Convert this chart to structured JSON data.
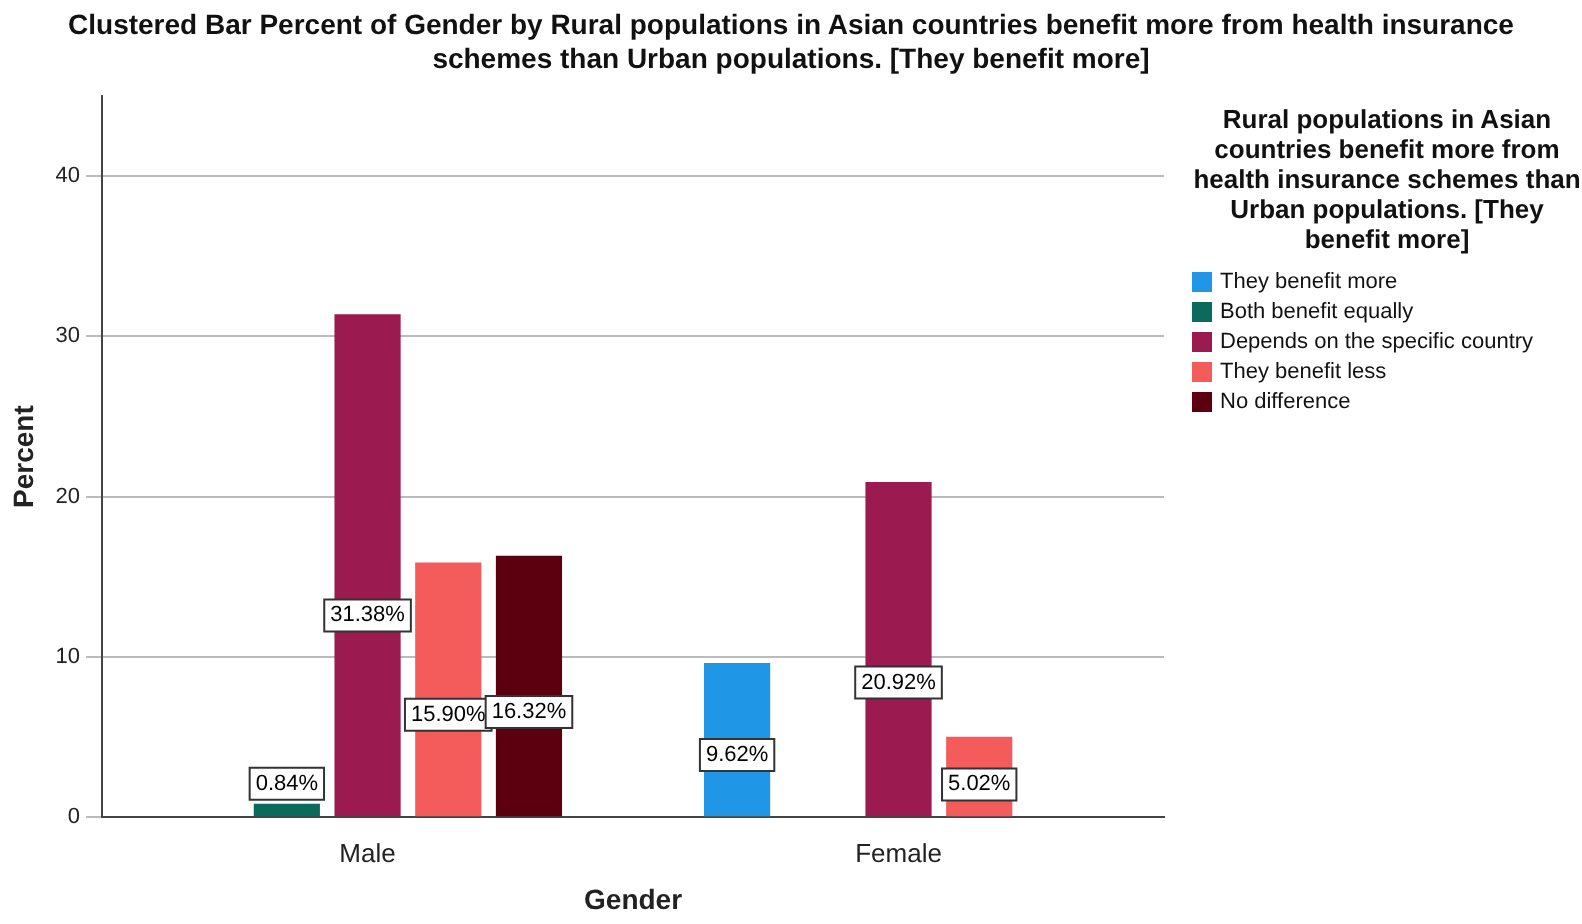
{
  "chart_data": {
    "type": "bar",
    "title": "Clustered Bar Percent of Gender by Rural populations in Asian countries benefit more from health insurance schemes than Urban populations. [They benefit more]",
    "xlabel": "Gender",
    "ylabel": "Percent",
    "legend_title": "Rural populations in Asian countries benefit more from health insurance schemes than Urban populations. [They benefit more]",
    "categories": [
      "Male",
      "Female"
    ],
    "series": [
      {
        "name": "They benefit more",
        "color": "#1f97e6",
        "values": [
          null,
          9.62
        ],
        "value_labels": [
          null,
          "9.62%"
        ]
      },
      {
        "name": "Both benefit equally",
        "color": "#0b6a5e",
        "values": [
          0.84,
          null
        ],
        "value_labels": [
          "0.84%",
          null
        ]
      },
      {
        "name": "Depends on the specific country",
        "color": "#9b1a4f",
        "values": [
          31.38,
          20.92
        ],
        "value_labels": [
          "31.38%",
          "20.92%"
        ]
      },
      {
        "name": "They benefit less",
        "color": "#f45b5b",
        "values": [
          15.9,
          5.02
        ],
        "value_labels": [
          "15.90%",
          "5.02%"
        ]
      },
      {
        "name": "No difference",
        "color": "#5c0010",
        "values": [
          16.32,
          null
        ],
        "value_labels": [
          "16.32%",
          null
        ]
      }
    ],
    "ylim": [
      0,
      45
    ],
    "yticks": [
      0,
      10,
      20,
      30,
      40
    ],
    "grid": "y",
    "legend": "right"
  }
}
